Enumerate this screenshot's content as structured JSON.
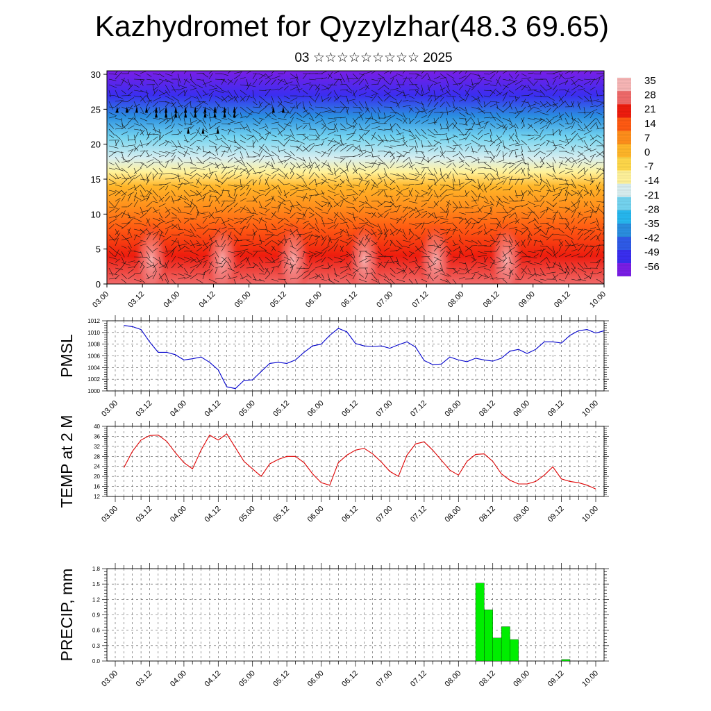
{
  "title": "Kazhydromet for Qyzylzhar(48.3 69.65)",
  "subtitle": "03 ☆☆☆☆☆☆☆☆☆ 2025",
  "time_ticks": [
    "03.00",
    "03.12",
    "04.00",
    "04.12",
    "05.00",
    "05.12",
    "06.00",
    "06.12",
    "07.00",
    "07.12",
    "08.00",
    "08.12",
    "09.00",
    "09.12",
    "10.00"
  ],
  "colors": {
    "pmsl_line": "#0000cc",
    "temp_line": "#dd0000",
    "precip_bar": "#00ee00",
    "grid": "#555555"
  },
  "chart_data": [
    {
      "type": "heatmap",
      "name": "cross-section",
      "y_ticks": [
        0,
        5,
        10,
        15,
        20,
        25,
        30
      ],
      "ylim": [
        0,
        30.5
      ],
      "x": [
        "03.00",
        "03.12",
        "04.00",
        "04.12",
        "05.00",
        "05.12",
        "06.00",
        "06.12",
        "07.00",
        "07.12",
        "08.00",
        "08.12",
        "09.00",
        "09.12",
        "10.00"
      ],
      "colorbar_levels": [
        35,
        28,
        21,
        14,
        7,
        0,
        -7,
        -14,
        -21,
        -28,
        -35,
        -42,
        -49,
        -56
      ],
      "colorbar_range": [
        -63,
        42
      ],
      "colorbar_colors": [
        "#7a1ee6",
        "#3a2ef0",
        "#2f5be8",
        "#2a8ee0",
        "#27b8ef",
        "#74d4f0",
        "#d8eef0",
        "#fff29a",
        "#ffd84a",
        "#ffb629",
        "#ff8e1b",
        "#ff5a12",
        "#ee1c0e",
        "#f06a6a",
        "#f7b6b6"
      ],
      "temperature_profile": [
        {
          "z": 0,
          "t": 28
        },
        {
          "z": 4,
          "t": 22
        },
        {
          "z": 8,
          "t": 18
        },
        {
          "z": 11,
          "t": 12
        },
        {
          "z": 14,
          "t": 2
        },
        {
          "z": 16,
          "t": -8
        },
        {
          "z": 18,
          "t": -18
        },
        {
          "z": 21,
          "t": -28
        },
        {
          "z": 24,
          "t": -42
        },
        {
          "z": 27,
          "t": -52
        },
        {
          "z": 30.5,
          "t": -58
        }
      ]
    },
    {
      "type": "line",
      "name": "PMSL",
      "ylabel": "PMSL",
      "ylim": [
        1000,
        1012
      ],
      "y_ticks": [
        1000,
        1002,
        1004,
        1006,
        1008,
        1010,
        1012
      ],
      "x_step_hours": 3,
      "values": [
        1011.2,
        1011.0,
        1010.5,
        1008.4,
        1006.6,
        1006.6,
        1006.2,
        1005.3,
        1005.5,
        1005.8,
        1004.9,
        1003.6,
        1000.7,
        1000.4,
        1001.8,
        1001.9,
        1003.3,
        1004.7,
        1004.9,
        1004.7,
        1005.3,
        1006.6,
        1007.7,
        1008.0,
        1009.5,
        1010.7,
        1010.1,
        1008.1,
        1007.7,
        1007.6,
        1007.7,
        1007.3,
        1007.9,
        1008.4,
        1007.5,
        1005.2,
        1004.5,
        1004.6,
        1005.8,
        1005.3,
        1005.0,
        1005.6,
        1005.3,
        1005.1,
        1005.6,
        1006.8,
        1007.1,
        1006.4,
        1007.1,
        1008.4,
        1008.4,
        1008.2,
        1009.5,
        1010.3,
        1010.5,
        1009.9,
        1010.3
      ]
    },
    {
      "type": "line",
      "name": "TEMP at 2 M",
      "ylabel": "TEMP at 2 M",
      "ylim": [
        12,
        40
      ],
      "y_ticks": [
        12,
        16,
        20,
        24,
        28,
        32,
        36,
        40
      ],
      "x_step_hours": 3,
      "values": [
        23.5,
        30.0,
        34.5,
        36.3,
        36.5,
        34.0,
        29.5,
        25.5,
        23.0,
        30.5,
        36.5,
        34.5,
        37.0,
        31.5,
        26.0,
        23.0,
        20.0,
        25.0,
        26.8,
        28.0,
        28.0,
        25.5,
        21.0,
        17.5,
        16.5,
        25.5,
        28.5,
        30.5,
        31.2,
        29.0,
        25.8,
        22.0,
        20.0,
        28.5,
        33.0,
        33.8,
        30.5,
        26.5,
        22.5,
        20.5,
        26.0,
        28.8,
        29.0,
        26.0,
        21.0,
        18.5,
        17.0,
        17.0,
        18.0,
        20.5,
        23.8,
        19.0,
        18.0,
        17.5,
        16.5,
        15.0
      ]
    },
    {
      "type": "bar",
      "name": "PRECIP",
      "ylabel": "PRECIP, mm",
      "ylim": [
        0,
        1.8
      ],
      "y_ticks": [
        "0.0",
        "0.3",
        "0.6",
        "0.9",
        "1.2",
        "1.5",
        "1.8"
      ],
      "bars": [
        {
          "start": "08.06",
          "end": "08.09",
          "value": 1.52
        },
        {
          "start": "08.09",
          "end": "08.12",
          "value": 1.0
        },
        {
          "start": "08.12",
          "end": "08.15",
          "value": 0.45
        },
        {
          "start": "08.15",
          "end": "08.18",
          "value": 0.67
        },
        {
          "start": "08.18",
          "end": "08.21",
          "value": 0.42
        },
        {
          "start": "09.12",
          "end": "09.15",
          "value": 0.03
        }
      ]
    }
  ]
}
